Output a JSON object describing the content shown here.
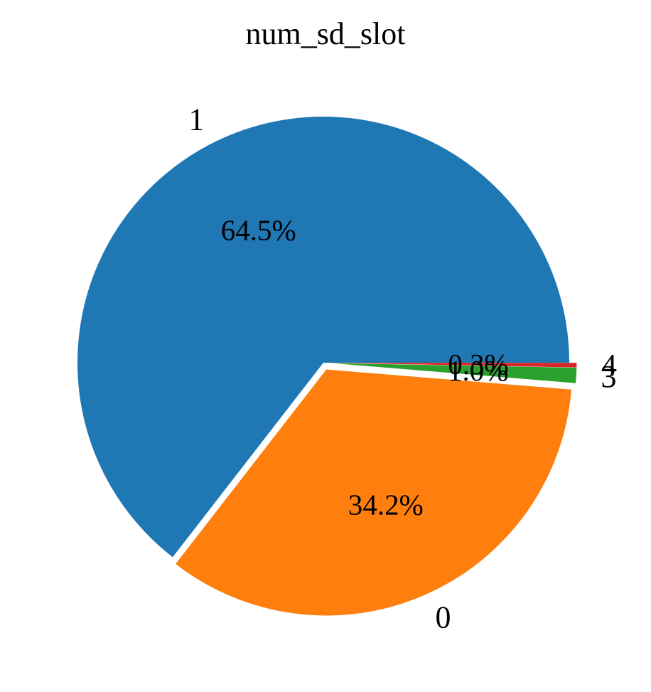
{
  "chart_data": {
    "type": "pie",
    "title": "num_sd_slot",
    "slices": [
      {
        "label": "1",
        "value": 64.5,
        "pct_label": "64.5%",
        "color": "#1f77b4"
      },
      {
        "label": "0",
        "value": 34.2,
        "pct_label": "34.2%",
        "color": "#ff7f0e"
      },
      {
        "label": "3",
        "value": 1.0,
        "pct_label": "1.0%",
        "color": "#2ca02c"
      },
      {
        "label": "4",
        "value": 0.3,
        "pct_label": "0.3%",
        "color": "#d62728"
      }
    ],
    "explode": [
      0,
      0.03,
      0.03,
      0.03
    ],
    "start_angle_deg": 0,
    "direction": "counterclockwise",
    "legend": "none"
  }
}
